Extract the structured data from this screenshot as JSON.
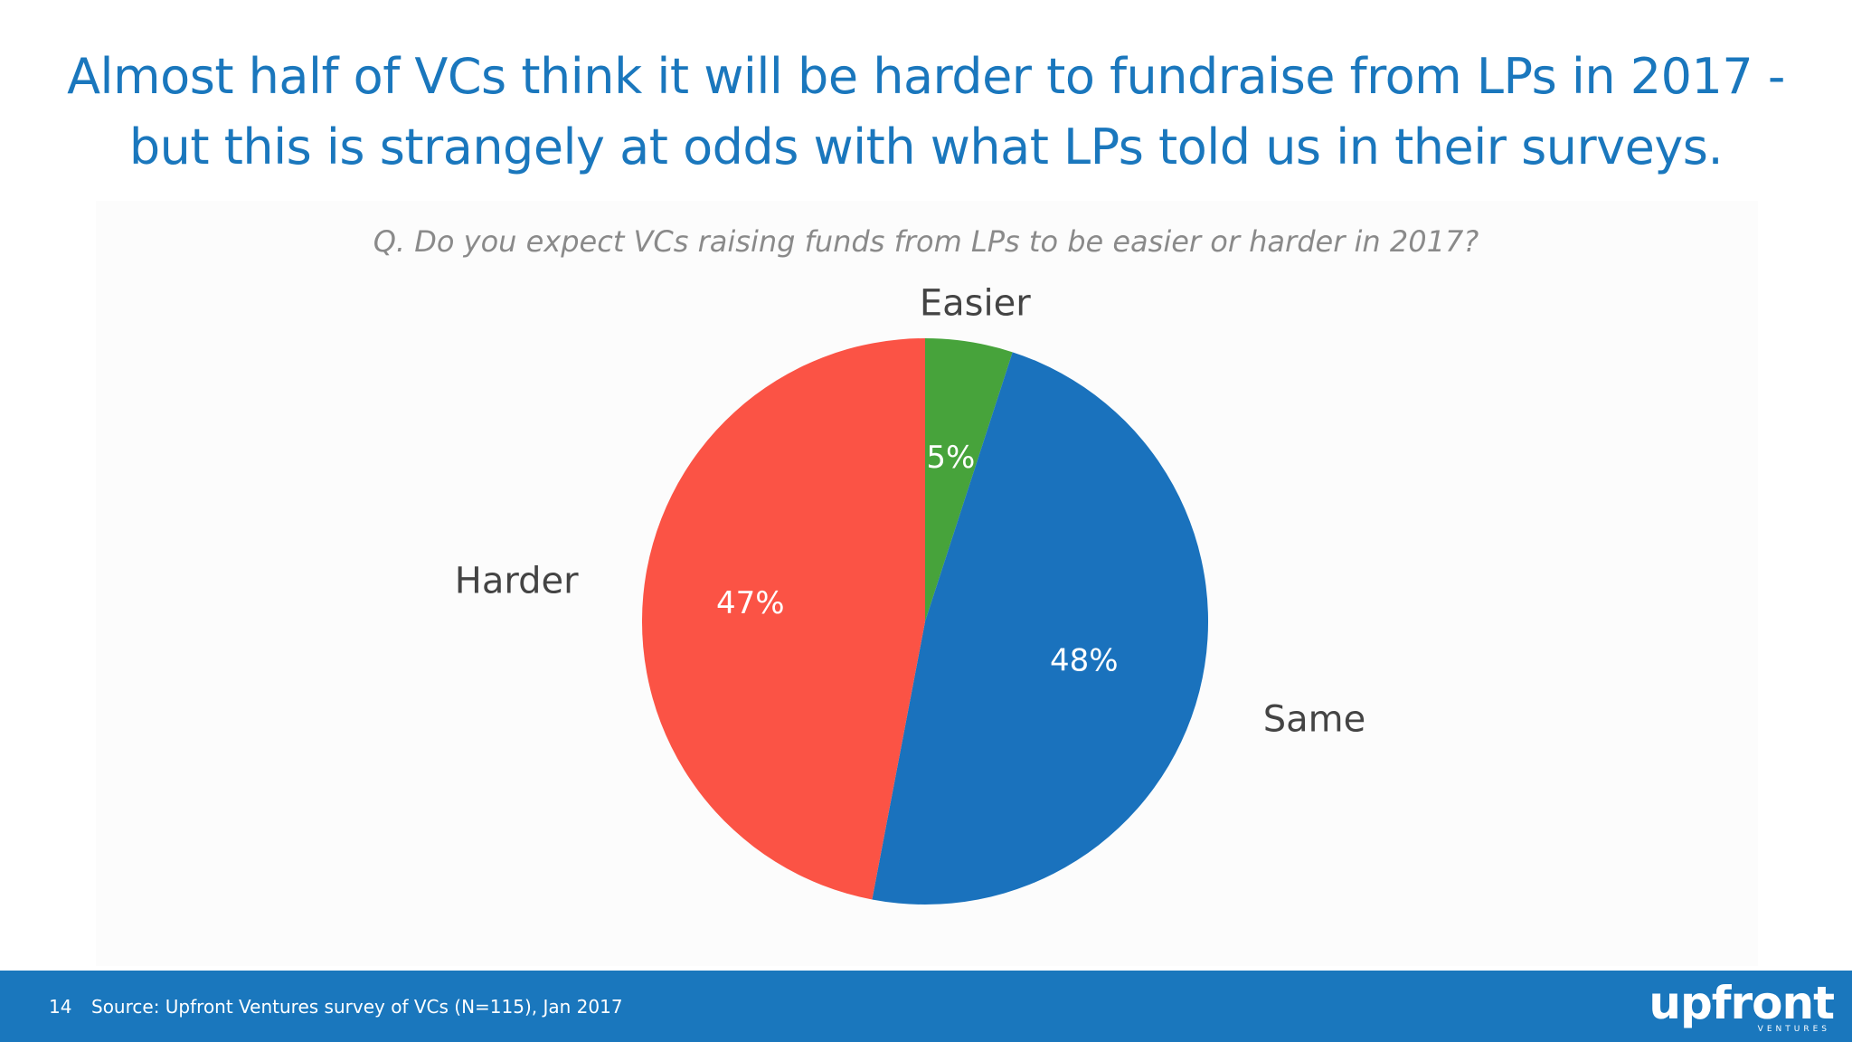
{
  "slide": {
    "title": "Almost half of VCs think it will be harder to fundraise from LPs in 2017 - but this is strangely at odds with what LPs told us in their surveys.",
    "subtitle": "Q. Do you expect VCs raising funds from LPs to be easier or harder in 2017?"
  },
  "chart_data": {
    "type": "pie",
    "categories": [
      "Easier",
      "Same",
      "Harder"
    ],
    "values": [
      5,
      48,
      47
    ],
    "value_labels": [
      "5%",
      "48%",
      "47%"
    ],
    "colors": [
      "#47a33b",
      "#1a72bd",
      "#fb5345"
    ],
    "start_angle": "12 o'clock, clockwise"
  },
  "footer": {
    "page_number": "14",
    "source": "Source: Upfront Ventures survey of VCs (N=115), Jan 2017",
    "logo_text": "upfront",
    "logo_subtext": "VENTURES",
    "background": "#1a77bd"
  }
}
